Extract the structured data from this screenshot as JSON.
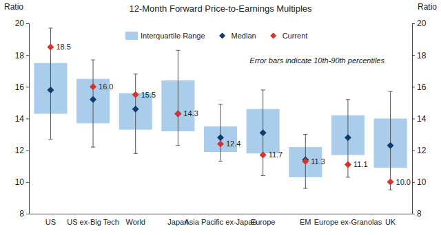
{
  "chart_data": {
    "type": "box",
    "title": "12-Month Forward Price-to-Earnings Multiples",
    "y_label": "Ratio",
    "y2_label": "Ratio",
    "annotation": "Error bars indicate 10th-90th percentiles",
    "categories": [
      "US",
      "US ex-Big Tech",
      "World",
      "Japan",
      "Asia Pacific ex-Japan",
      "Europe",
      "EM",
      "Europe ex-Granolas",
      "UK"
    ],
    "series": [
      {
        "name": "Interquartile Range",
        "type": "box",
        "color": "#a9cdea",
        "q1": [
          14.3,
          13.7,
          13.3,
          13.2,
          11.9,
          11.8,
          10.3,
          11.7,
          10.9
        ],
        "q3": [
          17.5,
          16.5,
          15.6,
          16.4,
          13.5,
          14.6,
          12.2,
          14.2,
          14.0
        ],
        "whisker_low": [
          12.7,
          12.2,
          11.8,
          12.3,
          11.3,
          10.4,
          9.6,
          10.3,
          9.5
        ],
        "whisker_high": [
          19.7,
          17.7,
          16.8,
          18.3,
          14.9,
          15.8,
          13.0,
          15.2,
          15.7
        ]
      },
      {
        "name": "Median",
        "type": "scatter",
        "marker": "diamond",
        "color": "#0f3b6e",
        "values": [
          15.8,
          15.2,
          14.6,
          14.3,
          12.8,
          13.1,
          11.4,
          12.8,
          12.3
        ]
      },
      {
        "name": "Current",
        "type": "scatter",
        "marker": "diamond",
        "color": "#d9312b",
        "data_labels": true,
        "values": [
          18.5,
          16.0,
          15.5,
          14.3,
          12.4,
          11.7,
          11.3,
          11.1,
          10.0
        ],
        "value_labels": [
          "18.5",
          "16.0",
          "15.5",
          "14.3",
          "12.4",
          "11.7",
          "11.3",
          "11.1",
          "10.0"
        ]
      }
    ],
    "ylim": [
      8,
      20
    ],
    "yticks": [
      8,
      10,
      12,
      14,
      16,
      18,
      20
    ],
    "y2lim": [
      8,
      20
    ],
    "y2ticks": [
      8,
      10,
      12,
      14,
      16,
      18,
      20
    ],
    "grid": false,
    "legend": "top"
  }
}
